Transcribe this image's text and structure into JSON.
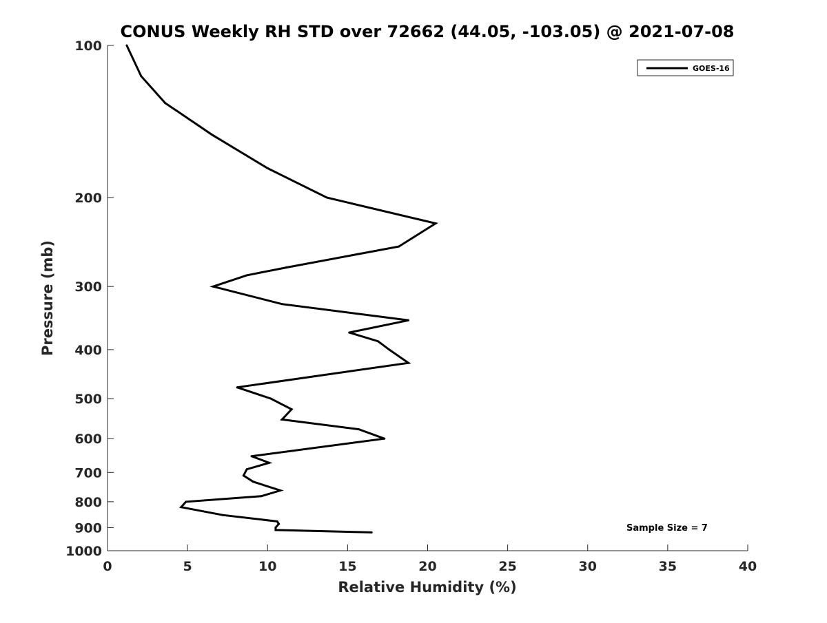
{
  "chart_data": {
    "type": "line",
    "title": "CONUS Weekly RH STD over 72662 (44.05, -103.05) @ 2021-07-08",
    "xlabel": "Relative Humidity (%)",
    "ylabel": "Pressure (mb)",
    "xlim": [
      0,
      40
    ],
    "ylim": [
      100,
      1000
    ],
    "y_scale": "log",
    "y_reversed": true,
    "x_ticks": [
      0,
      5,
      10,
      15,
      20,
      25,
      30,
      35,
      40
    ],
    "y_ticks": [
      100,
      200,
      300,
      400,
      500,
      600,
      700,
      800,
      900,
      1000
    ],
    "grid": false,
    "legend_position": "top-right",
    "series": [
      {
        "name": "GOES-16",
        "color": "#000000",
        "points": [
          {
            "x": 1.2,
            "y": 100
          },
          {
            "x": 2.1,
            "y": 115
          },
          {
            "x": 3.6,
            "y": 130
          },
          {
            "x": 6.5,
            "y": 150
          },
          {
            "x": 10.0,
            "y": 175
          },
          {
            "x": 13.7,
            "y": 200
          },
          {
            "x": 20.5,
            "y": 225
          },
          {
            "x": 18.2,
            "y": 250
          },
          {
            "x": 11.2,
            "y": 275
          },
          {
            "x": 8.7,
            "y": 285
          },
          {
            "x": 6.6,
            "y": 300
          },
          {
            "x": 10.9,
            "y": 325
          },
          {
            "x": 18.8,
            "y": 350
          },
          {
            "x": 15.1,
            "y": 370
          },
          {
            "x": 16.9,
            "y": 385
          },
          {
            "x": 17.6,
            "y": 400
          },
          {
            "x": 18.8,
            "y": 425
          },
          {
            "x": 8.1,
            "y": 475
          },
          {
            "x": 10.2,
            "y": 500
          },
          {
            "x": 11.5,
            "y": 525
          },
          {
            "x": 10.9,
            "y": 550
          },
          {
            "x": 15.7,
            "y": 575
          },
          {
            "x": 17.3,
            "y": 600
          },
          {
            "x": 9.0,
            "y": 650
          },
          {
            "x": 10.1,
            "y": 670
          },
          {
            "x": 8.7,
            "y": 690
          },
          {
            "x": 8.5,
            "y": 710
          },
          {
            "x": 9.1,
            "y": 730
          },
          {
            "x": 10.8,
            "y": 760
          },
          {
            "x": 9.6,
            "y": 780
          },
          {
            "x": 4.9,
            "y": 800
          },
          {
            "x": 4.6,
            "y": 820
          },
          {
            "x": 7.2,
            "y": 850
          },
          {
            "x": 10.6,
            "y": 875
          },
          {
            "x": 10.7,
            "y": 885
          },
          {
            "x": 10.5,
            "y": 900
          },
          {
            "x": 10.5,
            "y": 910
          },
          {
            "x": 16.5,
            "y": 920
          }
        ]
      }
    ],
    "annotations": [
      {
        "text": "Sample Size = 7",
        "position": "bottom-right"
      }
    ]
  }
}
